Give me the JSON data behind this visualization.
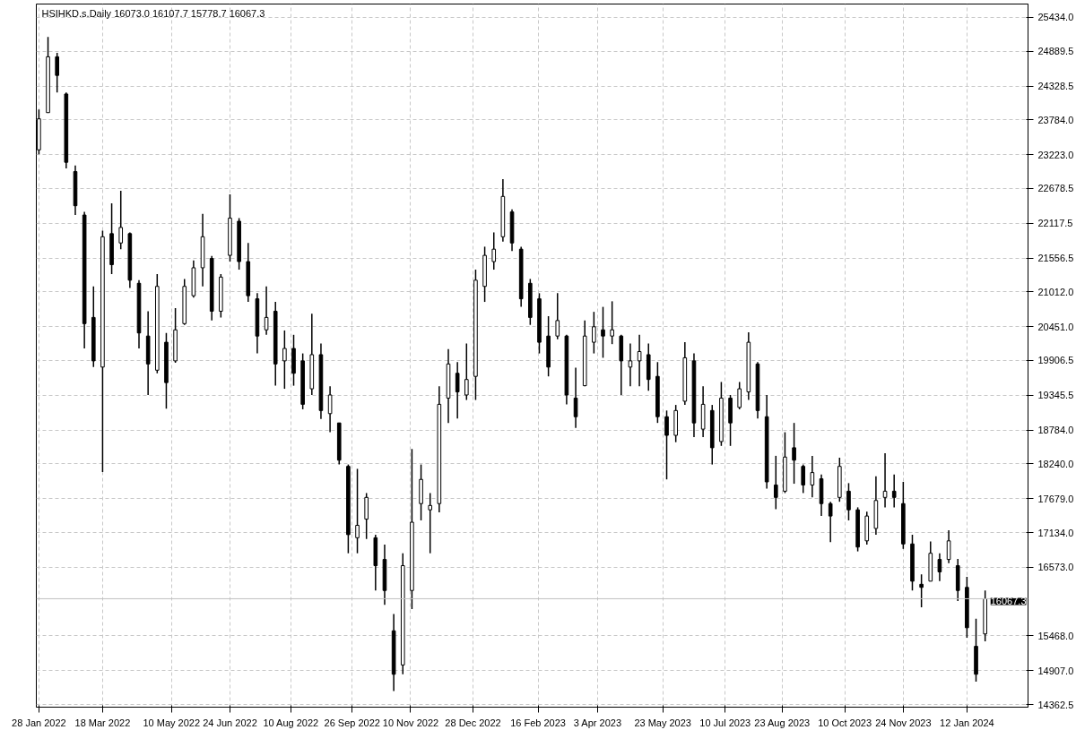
{
  "chart_data": {
    "type": "candlestick",
    "title": "HSIHKD.s.Daily  16073.0 16107.7 15778.7 16067.3",
    "color": "#000000",
    "grid": true,
    "x": [
      "2022-01-28",
      "2022-02-04",
      "2022-02-11",
      "2022-02-18",
      "2022-02-25",
      "2022-03-04",
      "2022-03-11",
      "2022-03-18",
      "2022-03-25",
      "2022-04-01",
      "2022-04-08",
      "2022-04-15",
      "2022-04-22",
      "2022-04-29",
      "2022-05-06",
      "2022-05-13",
      "2022-05-20",
      "2022-05-27",
      "2022-06-03",
      "2022-06-10",
      "2022-06-17",
      "2022-06-24",
      "2022-07-01",
      "2022-07-08",
      "2022-07-15",
      "2022-07-22",
      "2022-07-29",
      "2022-08-05",
      "2022-08-12",
      "2022-08-19",
      "2022-08-26",
      "2022-09-02",
      "2022-09-09",
      "2022-09-16",
      "2022-09-23",
      "2022-09-30",
      "2022-10-07",
      "2022-10-14",
      "2022-10-21",
      "2022-10-28",
      "2022-11-04",
      "2022-11-11",
      "2022-11-18",
      "2022-11-25",
      "2022-12-02",
      "2022-12-09",
      "2022-12-16",
      "2022-12-23",
      "2022-12-30",
      "2023-01-06",
      "2023-01-13",
      "2023-01-20",
      "2023-01-27",
      "2023-02-03",
      "2023-02-10",
      "2023-02-17",
      "2023-02-24",
      "2023-03-03",
      "2023-03-10",
      "2023-03-17",
      "2023-03-24",
      "2023-03-31",
      "2023-04-07",
      "2023-04-14",
      "2023-04-21",
      "2023-04-28",
      "2023-05-05",
      "2023-05-12",
      "2023-05-19",
      "2023-05-26",
      "2023-06-02",
      "2023-06-09",
      "2023-06-16",
      "2023-06-23",
      "2023-06-30",
      "2023-07-07",
      "2023-07-14",
      "2023-07-21",
      "2023-07-28",
      "2023-08-04",
      "2023-08-11",
      "2023-08-18",
      "2023-08-25",
      "2023-09-01",
      "2023-09-08",
      "2023-09-15",
      "2023-09-22",
      "2023-09-29",
      "2023-10-06",
      "2023-10-13",
      "2023-10-20",
      "2023-10-27",
      "2023-11-03",
      "2023-11-10",
      "2023-11-17",
      "2023-11-24",
      "2023-12-01",
      "2023-12-08",
      "2023-12-15",
      "2023-12-22",
      "2023-12-29",
      "2024-01-05",
      "2024-01-12",
      "2024-01-19",
      "2024-01-26"
    ],
    "ohlc": [
      [
        23300,
        23950,
        23230,
        23800
      ],
      [
        23900,
        25120,
        23900,
        24800
      ],
      [
        24800,
        24864,
        24224,
        24500
      ],
      [
        24200,
        24224,
        23000,
        23100
      ],
      [
        22950,
        23050,
        22250,
        22400
      ],
      [
        22250,
        22300,
        20100,
        20500
      ],
      [
        20600,
        21100,
        19800,
        19900
      ],
      [
        19800,
        22000,
        18110,
        21900
      ],
      [
        21950,
        22440,
        21300,
        21450
      ],
      [
        21800,
        22640,
        21700,
        22050
      ],
      [
        21950,
        21970,
        21075,
        21200
      ],
      [
        21150,
        21200,
        20100,
        20350
      ],
      [
        20300,
        20700,
        19350,
        19850
      ],
      [
        19750,
        21300,
        19700,
        21100
      ],
      [
        20200,
        20350,
        19130,
        19550
      ],
      [
        19900,
        20750,
        19870,
        20400
      ],
      [
        20500,
        21220,
        20480,
        21100
      ],
      [
        20950,
        21520,
        20920,
        21400
      ],
      [
        21400,
        22270,
        21100,
        21900
      ],
      [
        21550,
        21590,
        20550,
        20700
      ],
      [
        20700,
        21300,
        20600,
        21250
      ],
      [
        21600,
        22584,
        21500,
        22200
      ],
      [
        22150,
        22200,
        21370,
        21500
      ],
      [
        21500,
        21800,
        20850,
        20950
      ],
      [
        20900,
        20990,
        20020,
        20300
      ],
      [
        20400,
        21100,
        20320,
        20600
      ],
      [
        20700,
        20850,
        19500,
        19850
      ],
      [
        19900,
        20390,
        19450,
        20100
      ],
      [
        20100,
        20320,
        19500,
        19700
      ],
      [
        19900,
        20020,
        19120,
        19200
      ],
      [
        19450,
        20660,
        19350,
        20000
      ],
      [
        20000,
        20180,
        18965,
        19100
      ],
      [
        19050,
        19490,
        18750,
        19350
      ],
      [
        18900,
        18900,
        18230,
        18300
      ],
      [
        18200,
        18230,
        16800,
        17100
      ],
      [
        17050,
        18160,
        16800,
        17250
      ],
      [
        17350,
        17770,
        17030,
        17700
      ],
      [
        17050,
        17100,
        16200,
        16600
      ],
      [
        16700,
        16940,
        15970,
        16200
      ],
      [
        15550,
        15820,
        14580,
        14850
      ],
      [
        15000,
        16800,
        14850,
        16600
      ],
      [
        16200,
        18480,
        15900,
        17300
      ],
      [
        17600,
        18230,
        17330,
        17990
      ],
      [
        17500,
        17770,
        16800,
        17570
      ],
      [
        17600,
        19490,
        17460,
        19200
      ],
      [
        19300,
        20090,
        18900,
        19850
      ],
      [
        19700,
        19880,
        18970,
        19400
      ],
      [
        19350,
        20180,
        19270,
        19600
      ],
      [
        19650,
        21370,
        19270,
        21200
      ],
      [
        21100,
        21740,
        20850,
        21600
      ],
      [
        21500,
        21970,
        21370,
        21700
      ],
      [
        21900,
        22830,
        21820,
        22550
      ],
      [
        22300,
        22340,
        21670,
        21800
      ],
      [
        21700,
        21740,
        20770,
        20900
      ],
      [
        21150,
        21220,
        20480,
        20600
      ],
      [
        20900,
        20990,
        20020,
        20200
      ],
      [
        20300,
        20620,
        19650,
        19800
      ],
      [
        20300,
        20990,
        20250,
        20550
      ],
      [
        20300,
        20320,
        19200,
        19350
      ],
      [
        19300,
        19790,
        18820,
        19000
      ],
      [
        19500,
        20550,
        19490,
        20300
      ],
      [
        20200,
        20690,
        20020,
        20450
      ],
      [
        20400,
        20770,
        19950,
        20300
      ],
      [
        20300,
        20860,
        20170,
        20400
      ],
      [
        20300,
        20320,
        19350,
        19900
      ],
      [
        19800,
        20180,
        19490,
        19900
      ],
      [
        19900,
        20320,
        19490,
        20050
      ],
      [
        20000,
        20180,
        19420,
        19600
      ],
      [
        19650,
        19880,
        18900,
        19000
      ],
      [
        19000,
        19100,
        17990,
        18700
      ],
      [
        18700,
        19190,
        18590,
        19100
      ],
      [
        19250,
        20200,
        19190,
        19950
      ],
      [
        19900,
        20020,
        18670,
        18900
      ],
      [
        18800,
        19490,
        18670,
        19200
      ],
      [
        19100,
        19190,
        18230,
        18500
      ],
      [
        18600,
        19560,
        18530,
        19300
      ],
      [
        19300,
        19350,
        18530,
        18900
      ],
      [
        19150,
        19560,
        19120,
        19450
      ],
      [
        19400,
        20360,
        19270,
        20200
      ],
      [
        19850,
        19880,
        18970,
        19100
      ],
      [
        19000,
        19350,
        17840,
        17950
      ],
      [
        17900,
        18370,
        17510,
        17700
      ],
      [
        17800,
        18750,
        17770,
        18350
      ],
      [
        18500,
        18900,
        17920,
        18300
      ],
      [
        18200,
        18230,
        17770,
        17900
      ],
      [
        17900,
        18370,
        17700,
        18100
      ],
      [
        18000,
        18070,
        17400,
        17600
      ],
      [
        17600,
        17630,
        16980,
        17400
      ],
      [
        17700,
        18340,
        17630,
        18200
      ],
      [
        17800,
        17930,
        17330,
        17500
      ],
      [
        17500,
        17540,
        16830,
        16900
      ],
      [
        17000,
        17470,
        16940,
        17400
      ],
      [
        17200,
        18040,
        17100,
        17650
      ],
      [
        17700,
        18410,
        17540,
        17800
      ],
      [
        17800,
        18070,
        17540,
        17700
      ],
      [
        17600,
        17950,
        16870,
        16950
      ],
      [
        16950,
        17100,
        16200,
        16350
      ],
      [
        16300,
        16460,
        15930,
        16250
      ],
      [
        16350,
        16990,
        16350,
        16800
      ],
      [
        16700,
        16800,
        16350,
        16500
      ],
      [
        16700,
        17170,
        16640,
        17000
      ],
      [
        16600,
        16710,
        16030,
        16200
      ],
      [
        16250,
        16420,
        15440,
        15600
      ],
      [
        15300,
        15745,
        14730,
        14850
      ],
      [
        15500,
        16200,
        15380,
        16067.3
      ]
    ],
    "xlim": [
      "2022-01-26",
      "2024-02-28"
    ],
    "xticks": [
      {
        "value": "2022-01-28",
        "label": "28 Jan 2022"
      },
      {
        "value": "2022-03-18",
        "label": "18 Mar 2022"
      },
      {
        "value": "2022-05-10",
        "label": "10 May 2022"
      },
      {
        "value": "2022-06-24",
        "label": "24 Jun 2022"
      },
      {
        "value": "2022-08-10",
        "label": "10 Aug 2022"
      },
      {
        "value": "2022-09-26",
        "label": "26 Sep 2022"
      },
      {
        "value": "2022-11-10",
        "label": "10 Nov 2022"
      },
      {
        "value": "2022-12-28",
        "label": "28 Dec 2022"
      },
      {
        "value": "2023-02-16",
        "label": "16 Feb 2023"
      },
      {
        "value": "2023-04-03",
        "label": "3 Apr 2023"
      },
      {
        "value": "2023-05-23",
        "label": "23 May 2023"
      },
      {
        "value": "2023-07-10",
        "label": "10 Jul 2023"
      },
      {
        "value": "2023-08-23",
        "label": "23 Aug 2023"
      },
      {
        "value": "2023-10-10",
        "label": "10 Oct 2023"
      },
      {
        "value": "2023-11-24",
        "label": "24 Nov 2023"
      },
      {
        "value": "2024-01-12",
        "label": "12 Jan 2024"
      }
    ],
    "ylim": [
      14320,
      25650
    ],
    "yticks": [
      14362.5,
      {
        "value": 14907,
        "label": "14907.0"
      },
      {
        "value": 15468,
        "label": "15468.0"
      },
      {
        "value": 16573,
        "label": "16573.0"
      },
      {
        "value": 17134,
        "label": "17134.0"
      },
      {
        "value": 17679,
        "label": "17679.0"
      },
      {
        "value": 18240,
        "label": "18240.0"
      },
      {
        "value": 18784,
        "label": "18784.0"
      },
      19345.5,
      19906.5,
      {
        "value": 20451,
        "label": "20451.0"
      },
      {
        "value": 21012,
        "label": "21012.0"
      },
      21556.5,
      22117.5,
      22678.5,
      {
        "value": 23223,
        "label": "23223.0"
      },
      {
        "value": 23784,
        "label": "23784.0"
      },
      24328.5,
      24889.5,
      {
        "value": 25434,
        "label": "25434.0"
      }
    ],
    "ref_lines": [
      {
        "axis": "y",
        "value": 16067.3,
        "label": "16067.3",
        "color": "#c0c0c0"
      }
    ]
  }
}
